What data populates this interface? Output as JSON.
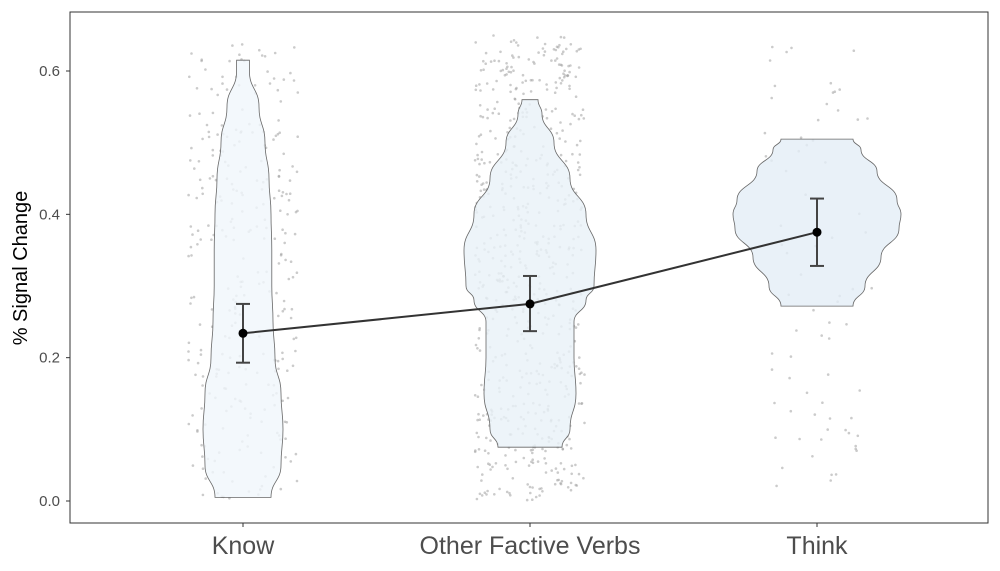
{
  "chart_data": {
    "type": "violin",
    "title": "",
    "xlabel": "",
    "ylabel": "% Signal Change",
    "ylim": [
      -0.03,
      0.66
    ],
    "yticks": [
      0.0,
      0.2,
      0.4,
      0.6
    ],
    "ytick_labels": [
      "0.0",
      "0.2",
      "0.4",
      "0.6"
    ],
    "grid": false,
    "legend": "none",
    "categories": [
      "Know",
      "Other Factive Verbs",
      "Think"
    ],
    "violins": [
      {
        "category": "Know",
        "min": 0.005,
        "max": 0.615,
        "fill": "#f0f6fb",
        "profile": [
          [
            0.005,
            0.07
          ],
          [
            0.05,
            0.095
          ],
          [
            0.1,
            0.1
          ],
          [
            0.15,
            0.095
          ],
          [
            0.2,
            0.08
          ],
          [
            0.25,
            0.075
          ],
          [
            0.3,
            0.072
          ],
          [
            0.35,
            0.072
          ],
          [
            0.4,
            0.07
          ],
          [
            0.45,
            0.065
          ],
          [
            0.5,
            0.055
          ],
          [
            0.55,
            0.04
          ],
          [
            0.6,
            0.016
          ],
          [
            0.615,
            0.016
          ]
        ]
      },
      {
        "category": "Other Factive Verbs",
        "min": 0.075,
        "max": 0.56,
        "fill": "#e9f1f8",
        "profile": [
          [
            0.075,
            0.08
          ],
          [
            0.1,
            0.1
          ],
          [
            0.15,
            0.115
          ],
          [
            0.2,
            0.11
          ],
          [
            0.25,
            0.11
          ],
          [
            0.28,
            0.14
          ],
          [
            0.3,
            0.16
          ],
          [
            0.35,
            0.165
          ],
          [
            0.4,
            0.14
          ],
          [
            0.45,
            0.1
          ],
          [
            0.5,
            0.06
          ],
          [
            0.54,
            0.03
          ],
          [
            0.56,
            0.02
          ]
        ]
      },
      {
        "category": "Think",
        "min": 0.272,
        "max": 0.505,
        "fill": "#e4edf6",
        "profile": [
          [
            0.272,
            0.09
          ],
          [
            0.3,
            0.12
          ],
          [
            0.34,
            0.16
          ],
          [
            0.38,
            0.205
          ],
          [
            0.4,
            0.21
          ],
          [
            0.42,
            0.2
          ],
          [
            0.46,
            0.15
          ],
          [
            0.49,
            0.11
          ],
          [
            0.505,
            0.09
          ]
        ]
      }
    ],
    "series": [
      {
        "name": "",
        "type": "line",
        "values": [
          0.234,
          0.275,
          0.375
        ],
        "error_low": [
          0.193,
          0.237,
          0.328
        ],
        "error_high": [
          0.275,
          0.314,
          0.422
        ]
      }
    ],
    "jitter": [
      {
        "category": "Know",
        "count": 300,
        "y_range": [
          0.0,
          0.64
        ]
      },
      {
        "category": "Other Factive Verbs",
        "count": 650,
        "y_range": [
          0.0,
          0.65
        ]
      },
      {
        "category": "Think",
        "count": 75,
        "y_range": [
          0.02,
          0.64
        ]
      }
    ],
    "colors": {
      "violin_stroke": "#666666",
      "line": "#333333",
      "point": "#000000",
      "errorbar": "#444444",
      "jitter": "#a0a0a0",
      "frame": "#333333"
    }
  }
}
